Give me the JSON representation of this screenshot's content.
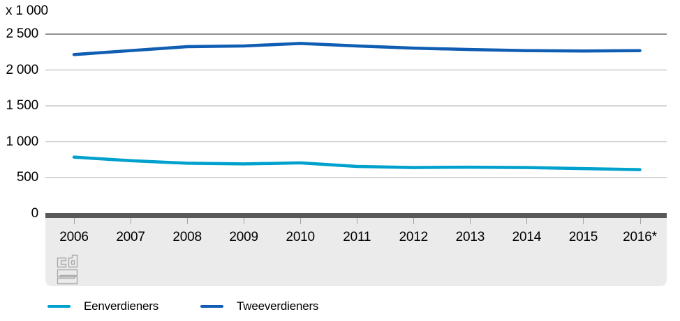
{
  "chart_data": {
    "type": "line",
    "title": "",
    "unit_label": "x 1 000",
    "xlabel": "",
    "ylabel": "x 1 000",
    "x": [
      2006,
      2007,
      2008,
      2009,
      2010,
      2011,
      2012,
      2013,
      2014,
      2015,
      2016
    ],
    "x_tick_labels": [
      "2006",
      "2007",
      "2008",
      "2009",
      "2010",
      "2011",
      "2012",
      "2013",
      "2014",
      "2015",
      "2016*"
    ],
    "ylim": [
      0,
      2500
    ],
    "y_tick_values": [
      0,
      500,
      1000,
      1500,
      2000,
      2500
    ],
    "y_tick_labels": [
      "0",
      "500",
      "1 000",
      "1 500",
      "2 000",
      "2 500"
    ],
    "grid": "horizontal",
    "legend_position": "bottom",
    "series": [
      {
        "name": "Eenverdieners",
        "color": "#00a1cd",
        "values": [
          785,
          735,
          700,
          690,
          705,
          655,
          640,
          645,
          640,
          625,
          610
        ]
      },
      {
        "name": "Tweeverdieners",
        "color": "#0f5eb3",
        "values": [
          2215,
          2270,
          2325,
          2335,
          2370,
          2335,
          2305,
          2285,
          2270,
          2265,
          2270
        ]
      }
    ]
  },
  "colors": {
    "grid_line": "#c9c9c9",
    "top_grid_line": "#6f6f6f",
    "zero_line": "#58595b",
    "axis_band": "#ebebeb",
    "tick": "#a3a3a3",
    "logo": "#a9a9a9"
  },
  "logo": {
    "name": "CBS"
  }
}
